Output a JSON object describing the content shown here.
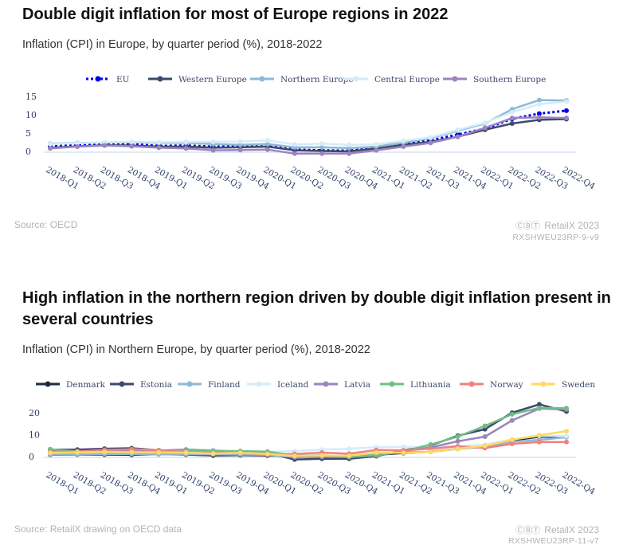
{
  "chart1": {
    "title": "Double digit inflation for most of Europe regions in 2022",
    "subtitle": "Inflation (CPI) in Europe, by quarter period (%), 2018-2022",
    "source": "Source: OECD",
    "brand": "RetailX 2023",
    "code": "RXSHWEU23RP-9-v9",
    "cc_glyph": "ⒸⒷⓉ"
  },
  "chart2": {
    "title_line1": "High inflation in the northern region driven by double digit inflation present in",
    "title_line2": "several countries",
    "subtitle": "Inflation (CPI) in Northern Europe, by quarter period (%), 2018-2022",
    "source": "Source: RetailX drawing on OECD data",
    "brand": "RetailX 2023",
    "code": "RXSHWEU23RP-11-v7",
    "cc_glyph": "ⒸⒷⓉ"
  },
  "chart_data": [
    {
      "type": "line",
      "title": "Double digit inflation for most of Europe regions in 2022",
      "xlabel": "",
      "ylabel": "",
      "ylim": [
        -1,
        15
      ],
      "yticks": [
        0,
        5,
        10,
        15
      ],
      "grid": false,
      "legend": "top",
      "categories": [
        "2018-Q1",
        "2018-Q2",
        "2018-Q3",
        "2018-Q4",
        "2019-Q1",
        "2019-Q2",
        "2019-Q3",
        "2019-Q4",
        "2020-Q1",
        "2020-Q2",
        "2020-Q3",
        "2020-Q4",
        "2021-Q1",
        "2021-Q2",
        "2021-Q3",
        "2021-Q4",
        "2022-Q1",
        "2022-Q2",
        "2022-Q3",
        "2022-Q4"
      ],
      "series": [
        {
          "name": "EU",
          "color": "#0000ee",
          "dashed": true,
          "values": [
            1.4,
            1.7,
            2.1,
            2.0,
            1.5,
            1.6,
            1.3,
            1.3,
            1.4,
            0.5,
            0.3,
            0.2,
            0.9,
            2.1,
            3.0,
            4.6,
            6.2,
            8.9,
            10.3,
            11.1
          ]
        },
        {
          "name": "Western Europe",
          "color": "#3d4a6b",
          "dashed": false,
          "values": [
            1.0,
            1.4,
            1.7,
            1.6,
            1.3,
            1.3,
            1.0,
            1.1,
            1.3,
            0.3,
            0.1,
            0.0,
            0.8,
            1.8,
            2.6,
            4.0,
            5.9,
            7.6,
            8.6,
            8.8
          ]
        },
        {
          "name": "Northern Europe",
          "color": "#8fb8d4",
          "dashed": false,
          "values": [
            2.1,
            2.3,
            2.4,
            2.5,
            2.3,
            2.3,
            2.0,
            1.8,
            2.0,
            1.1,
            1.1,
            0.9,
            1.3,
            2.4,
            3.6,
            5.6,
            7.6,
            11.5,
            14.0,
            13.9
          ]
        },
        {
          "name": "Central Europe",
          "color": "#d4ecfa",
          "dashed": false,
          "values": [
            2.0,
            2.2,
            2.5,
            2.6,
            2.5,
            2.6,
            2.6,
            2.7,
            3.0,
            1.9,
            2.1,
            1.8,
            1.9,
            2.9,
            3.8,
            5.9,
            7.8,
            10.7,
            12.9,
            13.6
          ]
        },
        {
          "name": "Southern Europe",
          "color": "#9b84c0",
          "dashed": false,
          "values": [
            0.8,
            1.3,
            1.6,
            1.4,
            1.0,
            0.8,
            0.3,
            0.4,
            0.5,
            -0.6,
            -0.6,
            -0.6,
            0.3,
            1.3,
            2.3,
            4.0,
            6.4,
            9.1,
            9.3,
            9.1
          ]
        }
      ]
    },
    {
      "type": "line",
      "title": "High inflation in the northern region driven by double digit inflation present in several countries",
      "xlabel": "",
      "ylabel": "",
      "ylim": [
        -2,
        25
      ],
      "yticks": [
        0,
        10,
        20
      ],
      "grid": false,
      "legend": "top",
      "categories": [
        "2018-Q1",
        "2018-Q2",
        "2018-Q3",
        "2018-Q4",
        "2019-Q1",
        "2019-Q2",
        "2019-Q3",
        "2019-Q4",
        "2020-Q1",
        "2020-Q2",
        "2020-Q3",
        "2020-Q4",
        "2021-Q1",
        "2021-Q2",
        "2021-Q3",
        "2021-Q4",
        "2022-Q1",
        "2022-Q2",
        "2022-Q3",
        "2022-Q4"
      ],
      "series": [
        {
          "name": "Denmark",
          "color": "#1f2a44",
          "values": [
            0.8,
            0.9,
            0.9,
            0.8,
            1.1,
            0.9,
            0.5,
            0.6,
            0.5,
            0.2,
            0.4,
            0.4,
            0.8,
            1.6,
            2.2,
            3.6,
            4.8,
            7.4,
            9.0,
            9.1
          ]
        },
        {
          "name": "Estonia",
          "color": "#3d4a6b",
          "values": [
            3.2,
            3.2,
            3.6,
            3.8,
            2.9,
            2.9,
            2.0,
            1.8,
            1.6,
            -1.3,
            -1.0,
            -1.0,
            0.2,
            2.8,
            5.1,
            9.5,
            12.5,
            20.0,
            23.8,
            20.6
          ]
        },
        {
          "name": "Finland",
          "color": "#8fb8d4",
          "values": [
            0.9,
            1.0,
            1.2,
            1.2,
            1.0,
            1.1,
            1.0,
            0.9,
            0.8,
            -0.3,
            0.3,
            0.1,
            1.2,
            2.1,
            2.1,
            3.5,
            4.4,
            6.8,
            7.6,
            8.8
          ]
        },
        {
          "name": "Iceland",
          "color": "#d4ecfa",
          "values": [
            2.3,
            2.3,
            2.6,
            3.3,
            3.0,
            3.4,
            3.1,
            2.3,
            2.2,
            2.5,
            3.2,
            3.6,
            4.3,
            4.4,
            4.4,
            4.8,
            5.4,
            7.8,
            9.5,
            9.4
          ]
        },
        {
          "name": "Latvia",
          "color": "#9b84c0",
          "values": [
            2.2,
            2.5,
            2.6,
            2.9,
            2.6,
            3.2,
            2.6,
            2.3,
            2.0,
            -0.1,
            -0.2,
            -0.3,
            0.5,
            2.4,
            4.2,
            7.0,
            9.1,
            16.5,
            21.9,
            21.5
          ]
        },
        {
          "name": "Lithuania",
          "color": "#6fbf84",
          "values": [
            3.4,
            2.4,
            2.3,
            2.0,
            2.2,
            2.8,
            2.5,
            2.5,
            2.3,
            0.4,
            0.6,
            0.0,
            0.6,
            2.4,
            5.5,
            9.1,
            14.0,
            19.3,
            22.2,
            22.1
          ]
        },
        {
          "name": "Norway",
          "color": "#f08080",
          "values": [
            2.2,
            2.3,
            3.1,
            3.3,
            2.9,
            2.2,
            1.6,
            1.7,
            1.0,
            1.2,
            1.8,
            1.3,
            3.0,
            2.8,
            3.6,
            4.7,
            3.9,
            5.8,
            6.6,
            6.6
          ]
        },
        {
          "name": "Sweden",
          "color": "#ffd966",
          "values": [
            1.7,
            1.9,
            2.1,
            2.0,
            1.9,
            1.8,
            1.4,
            1.7,
            1.2,
            0.3,
            0.5,
            0.4,
            1.8,
            1.7,
            2.1,
            3.6,
            4.9,
            7.7,
            9.7,
            11.6
          ]
        }
      ]
    }
  ]
}
